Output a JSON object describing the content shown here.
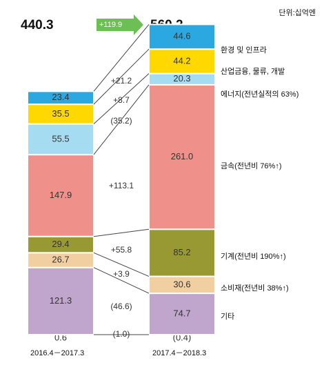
{
  "unit_label": "단위:십억엔",
  "change_badge": "+119.9",
  "chart_data": {
    "type": "bar",
    "title": "",
    "categories": [
      "2016.4－2017.3",
      "2017.4－2018.3"
    ],
    "totals": [
      "440.3",
      "560.2"
    ],
    "total_change": "+119.9",
    "series": [
      {
        "name": "기타",
        "values": [
          0.6,
          -0.4
        ],
        "labels": [
          "0.6",
          "(0.4)"
        ],
        "change": "(1.0)",
        "color": "#c0a6cc"
      },
      {
        "name": "기타",
        "values": [
          121.3,
          74.7
        ],
        "labels": [
          "121.3",
          "74.7"
        ],
        "change": "(46.6)",
        "color": "#c0a6cc"
      },
      {
        "name": "소비재(전년비 38%↑)",
        "values": [
          26.7,
          30.6
        ],
        "labels": [
          "26.7",
          "30.6"
        ],
        "change": "+3.9",
        "color": "#f2cfa0"
      },
      {
        "name": "기계(전년비 190%↑)",
        "values": [
          29.4,
          85.2
        ],
        "labels": [
          "29.4",
          "85.2"
        ],
        "change": "+55.8",
        "color": "#999933"
      },
      {
        "name": "금속(전년비 76%↑)",
        "values": [
          147.9,
          261.0
        ],
        "labels": [
          "147.9",
          "261.0"
        ],
        "change": "+113.1",
        "color": "#f0908a"
      },
      {
        "name": "에너지(전년실적의 63%)",
        "values": [
          55.5,
          20.3
        ],
        "labels": [
          "55.5",
          "20.3"
        ],
        "change": "(35.2)",
        "color": "#a6dcf2"
      },
      {
        "name": "산업금융, 물류, 개발",
        "values": [
          35.5,
          44.2
        ],
        "labels": [
          "35.5",
          "44.2"
        ],
        "change": "+8.7",
        "color": "#ffd800"
      },
      {
        "name": "환경 및 인프라",
        "values": [
          23.4,
          44.6
        ],
        "labels": [
          "23.4",
          "44.6"
        ],
        "change": "+21.2",
        "color": "#2ca8e0"
      }
    ],
    "legend_position": "right",
    "grid": false
  }
}
